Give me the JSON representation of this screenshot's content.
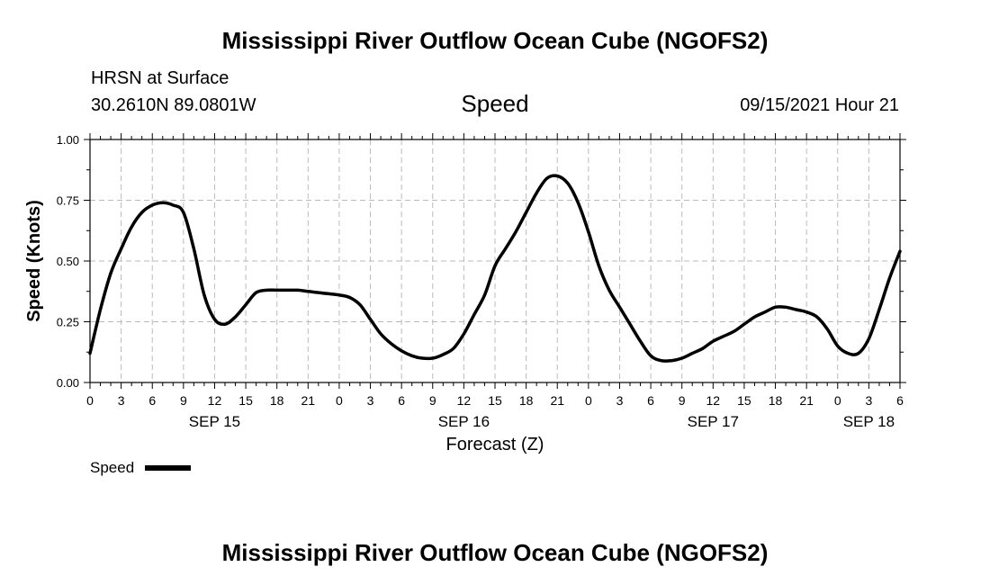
{
  "header": {
    "title": "Mississippi River Outflow Ocean Cube (NGOFS2)",
    "station": "HRSN at Surface",
    "coords": "30.2610N  89.0801W",
    "variable": "Speed",
    "datetime": "09/15/2021 Hour 21"
  },
  "footer": {
    "title": "Mississippi River Outflow Ocean Cube (NGOFS2)"
  },
  "chart_data": {
    "type": "line",
    "title": "Speed",
    "xlabel": "Forecast (Z)",
    "ylabel": "Speed (Knots)",
    "ylim": [
      0,
      1
    ],
    "xlim_hours": [
      0,
      78
    ],
    "yticks": [
      "0.00",
      "0.25",
      "0.50",
      "0.75",
      "1.00"
    ],
    "xtick_labels": [
      "0",
      "3",
      "6",
      "9",
      "12",
      "15",
      "18",
      "21",
      "0",
      "3",
      "6",
      "9",
      "12",
      "15",
      "18",
      "21",
      "0",
      "3",
      "6",
      "9",
      "12",
      "15",
      "18",
      "21",
      "0",
      "3",
      "6"
    ],
    "date_labels": [
      {
        "label": "SEP 15",
        "hour": 12
      },
      {
        "label": "SEP 16",
        "hour": 36
      },
      {
        "label": "SEP 17",
        "hour": 60
      },
      {
        "label": "SEP 18",
        "hour": 75
      }
    ],
    "grid": true,
    "legend": {
      "label": "Speed",
      "placement": "bottom-left"
    },
    "series": [
      {
        "name": "Speed",
        "color": "#000000",
        "x": [
          0,
          1,
          2,
          3,
          4,
          5,
          6,
          7,
          8,
          9,
          10,
          11,
          12,
          13,
          14,
          15,
          16,
          17,
          18,
          19,
          20,
          21,
          22,
          23,
          24,
          25,
          26,
          27,
          28,
          29,
          30,
          31,
          32,
          33,
          34,
          35,
          36,
          37,
          38,
          39,
          40,
          41,
          42,
          43,
          44,
          45,
          46,
          47,
          48,
          49,
          50,
          51,
          52,
          53,
          54,
          55,
          56,
          57,
          58,
          59,
          60,
          61,
          62,
          63,
          64,
          65,
          66,
          67,
          68,
          69,
          70,
          71,
          72,
          73,
          74,
          75,
          76,
          77,
          78
        ],
        "y": [
          0.12,
          0.3,
          0.45,
          0.55,
          0.64,
          0.7,
          0.73,
          0.74,
          0.73,
          0.7,
          0.55,
          0.36,
          0.26,
          0.24,
          0.27,
          0.32,
          0.37,
          0.38,
          0.38,
          0.38,
          0.38,
          0.375,
          0.37,
          0.365,
          0.36,
          0.35,
          0.32,
          0.26,
          0.2,
          0.16,
          0.13,
          0.11,
          0.1,
          0.1,
          0.115,
          0.14,
          0.2,
          0.28,
          0.36,
          0.48,
          0.55,
          0.62,
          0.7,
          0.78,
          0.84,
          0.85,
          0.82,
          0.74,
          0.62,
          0.48,
          0.38,
          0.31,
          0.24,
          0.17,
          0.11,
          0.09,
          0.09,
          0.1,
          0.12,
          0.14,
          0.17,
          0.19,
          0.21,
          0.24,
          0.27,
          0.29,
          0.31,
          0.31,
          0.3,
          0.29,
          0.27,
          0.22,
          0.15,
          0.12,
          0.12,
          0.18,
          0.3,
          0.43,
          0.54
        ]
      }
    ]
  }
}
